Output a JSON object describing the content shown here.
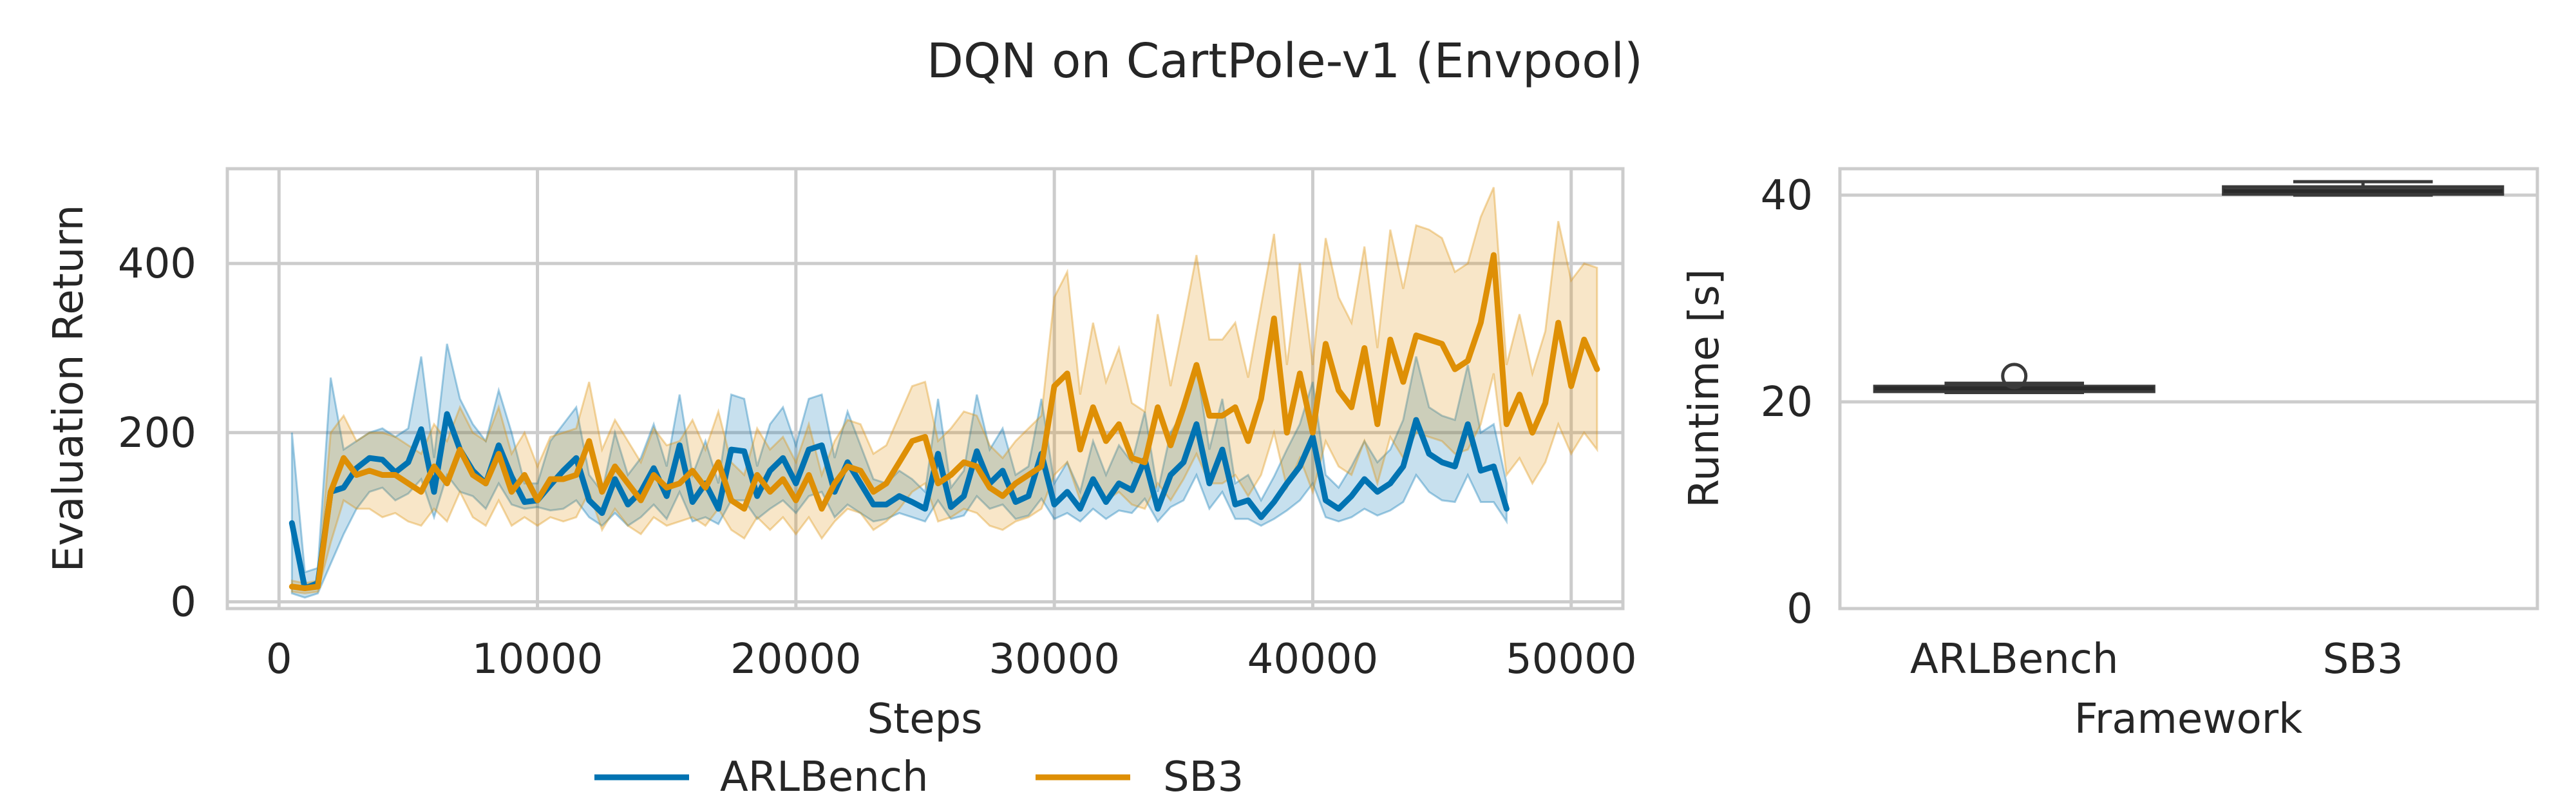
{
  "chart_data": {
    "title": "DQN on CartPole-v1 (Envpool)",
    "colors": {
      "ARLBench": "#0173b2",
      "SB3": "#de8f05",
      "grid": "#cccccc",
      "box": "#3a3a3a"
    },
    "charts": [
      {
        "type": "line",
        "xlabel": "Steps",
        "ylabel": "Evaluation Return",
        "xlim": [
          -2000,
          52000
        ],
        "ylim": [
          -8,
          512
        ],
        "xticks": [
          0,
          10000,
          20000,
          30000,
          40000,
          50000
        ],
        "yticks": [
          0,
          200,
          400
        ],
        "grid": true,
        "legend": {
          "placement": "bottom-center",
          "labels": [
            "ARLBench",
            "SB3"
          ]
        },
        "x_start": 500,
        "x_step": 500,
        "series": [
          {
            "name": "ARLBench",
            "values": [
              93,
              16,
              22,
              130,
              135,
              158,
              170,
              168,
              153,
              165,
              204,
              130,
              222,
              180,
              155,
              140,
              185,
              148,
              118,
              120,
              138,
              155,
              170,
              120,
              105,
              145,
              115,
              130,
              158,
              125,
              185,
              118,
              140,
              110,
              180,
              178,
              125,
              155,
              170,
              140,
              180,
              185,
              130,
              165,
              140,
              115,
              115,
              125,
              118,
              110,
              175,
              112,
              125,
              178,
              140,
              155,
              118,
              125,
              175,
              115,
              130,
              110,
              145,
              118,
              140,
              132,
              168,
              110,
              150,
              165,
              210,
              140,
              180,
              115,
              120,
              100,
              118,
              140,
              160,
              195,
              120,
              110,
              125,
              145,
              130,
              140,
              160,
              215,
              175,
              165,
              160,
              210,
              155,
              160,
              110
            ]
          },
          {
            "name": "SB3",
            "values": [
              18,
              16,
              18,
              130,
              170,
              150,
              155,
              150,
              150,
              140,
              130,
              160,
              140,
              180,
              150,
              140,
              175,
              130,
              150,
              120,
              145,
              145,
              150,
              190,
              130,
              160,
              140,
              120,
              150,
              135,
              140,
              155,
              135,
              165,
              120,
              110,
              150,
              130,
              145,
              120,
              150,
              110,
              140,
              160,
              155,
              130,
              140,
              165,
              190,
              195,
              140,
              150,
              165,
              160,
              135,
              125,
              140,
              150,
              160,
              255,
              270,
              180,
              230,
              190,
              210,
              170,
              165,
              230,
              185,
              230,
              280,
              220,
              220,
              230,
              190,
              240,
              335,
              200,
              270,
              200,
              305,
              250,
              230,
              300,
              210,
              310,
              260,
              315,
              310,
              305,
              275,
              285,
              330,
              410,
              210,
              245,
              200,
              235,
              330,
              255,
              310,
              275
            ]
          }
        ],
        "bands": [
          {
            "name": "ARLBench",
            "lower": [
              10,
              5,
              10,
              45,
              80,
              110,
              130,
              135,
              120,
              128,
              145,
              100,
              150,
              130,
              125,
              110,
              140,
              115,
              110,
              112,
              108,
              110,
              120,
              100,
              90,
              105,
              90,
              100,
              115,
              98,
              130,
              95,
              100,
              92,
              120,
              120,
              98,
              110,
              120,
              105,
              125,
              130,
              100,
              115,
              105,
              95,
              98,
              105,
              100,
              95,
              120,
              98,
              102,
              125,
              110,
              115,
              98,
              102,
              122,
              98,
              105,
              95,
              110,
              98,
              108,
              105,
              122,
              95,
              112,
              120,
              150,
              110,
              130,
              98,
              98,
              90,
              98,
              108,
              120,
              140,
              100,
              95,
              100,
              110,
              102,
              108,
              118,
              150,
              130,
              120,
              118,
              150,
              118,
              118,
              95
            ],
            "upper": [
              200,
              35,
              40,
              265,
              180,
              190,
              200,
              205,
              195,
              205,
              290,
              170,
              305,
              240,
              210,
              190,
              250,
              200,
              140,
              140,
              190,
              210,
              230,
              150,
              130,
              200,
              150,
              170,
              210,
              160,
              245,
              150,
              190,
              140,
              245,
              240,
              160,
              210,
              230,
              185,
              240,
              245,
              170,
              225,
              185,
              145,
              140,
              155,
              145,
              130,
              240,
              135,
              155,
              245,
              180,
              205,
              150,
              160,
              240,
              140,
              165,
              130,
              190,
              150,
              185,
              165,
              225,
              130,
              200,
              225,
              280,
              180,
              240,
              140,
              150,
              120,
              148,
              180,
              210,
              260,
              150,
              135,
              160,
              190,
              165,
              180,
              215,
              290,
              230,
              220,
              215,
              280,
              200,
              210,
              140
            ]
          },
          {
            "name": "SB3",
            "lower": [
              12,
              10,
              12,
              70,
              120,
              110,
              110,
              100,
              105,
              95,
              90,
              110,
              95,
              130,
              100,
              90,
              120,
              90,
              100,
              90,
              100,
              95,
              100,
              130,
              85,
              110,
              90,
              80,
              100,
              90,
              95,
              100,
              90,
              110,
              85,
              75,
              100,
              85,
              100,
              80,
              100,
              75,
              95,
              110,
              105,
              85,
              95,
              110,
              130,
              140,
              95,
              100,
              110,
              105,
              90,
              85,
              95,
              100,
              110,
              150,
              165,
              120,
              140,
              120,
              130,
              115,
              110,
              140,
              120,
              145,
              175,
              140,
              140,
              150,
              125,
              150,
              200,
              135,
              170,
              130,
              190,
              160,
              150,
              190,
              140,
              195,
              170,
              200,
              195,
              190,
              175,
              180,
              210,
              270,
              150,
              170,
              140,
              165,
              210,
              175,
              200,
              180
            ],
            "upper": [
              25,
              22,
              25,
              200,
              220,
              190,
              200,
              200,
              195,
              185,
              175,
              210,
              190,
              230,
              200,
              190,
              230,
              175,
              200,
              160,
              195,
              200,
              205,
              260,
              180,
              215,
              190,
              165,
              205,
              185,
              190,
              215,
              180,
              225,
              165,
              150,
              205,
              180,
              195,
              165,
              210,
              150,
              190,
              215,
              210,
              175,
              185,
              220,
              255,
              260,
              190,
              205,
              225,
              220,
              185,
              170,
              190,
              205,
              220,
              360,
              390,
              245,
              330,
              260,
              300,
              235,
              225,
              340,
              255,
              330,
              410,
              310,
              310,
              330,
              265,
              350,
              435,
              280,
              400,
              280,
              430,
              360,
              330,
              420,
              300,
              440,
              370,
              445,
              440,
              430,
              390,
              400,
              455,
              490,
              280,
              340,
              270,
              320,
              450,
              380,
              400,
              395
            ]
          }
        ]
      },
      {
        "type": "box",
        "xlabel": "Framework",
        "ylabel": "Runtime [s]",
        "categories": [
          "ARLBench",
          "SB3"
        ],
        "ylim": [
          0,
          40.0
        ],
        "yticks": [
          0,
          20,
          40
        ],
        "grid": true,
        "boxes": [
          {
            "name": "ARLBench",
            "whisker_low": 20.9,
            "q1": 21.0,
            "median": 21.3,
            "q3": 21.5,
            "whisker_high": 21.8,
            "outliers": [
              22.5
            ]
          },
          {
            "name": "SB3",
            "whisker_low": 40.0,
            "q1": 40.1,
            "median": 40.4,
            "q3": 40.8,
            "whisker_high": 41.3,
            "outliers": []
          }
        ]
      }
    ]
  }
}
